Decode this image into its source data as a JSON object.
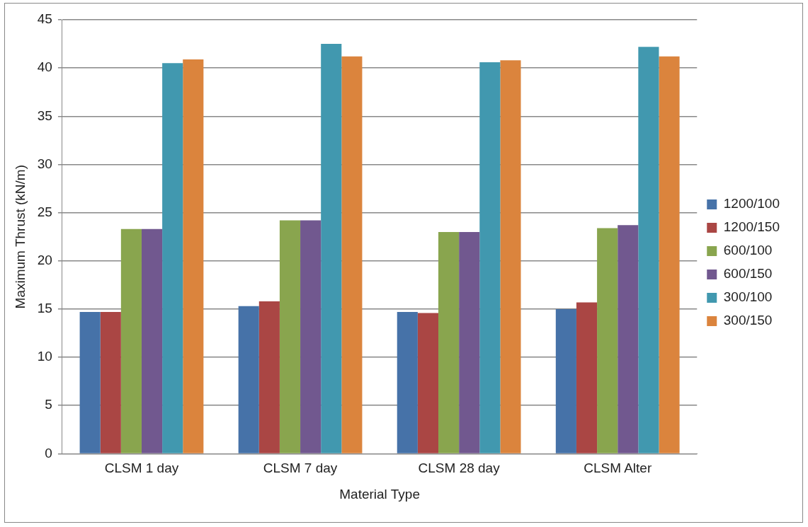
{
  "chart_data": {
    "type": "bar",
    "xlabel": "Material Type",
    "ylabel": "Maximum Thrust (kN/m)",
    "categories": [
      "CLSM 1 day",
      "CLSM 7 day",
      "CLSM 28 day",
      "CLSM Alter"
    ],
    "series": [
      {
        "name": "1200/100",
        "color": "#4672a8",
        "values": [
          14.7,
          15.3,
          14.7,
          15.0
        ]
      },
      {
        "name": "1200/150",
        "color": "#aa4644",
        "values": [
          14.7,
          15.8,
          14.6,
          15.7
        ]
      },
      {
        "name": "600/100",
        "color": "#89a54e",
        "values": [
          23.3,
          24.2,
          23.0,
          23.4
        ]
      },
      {
        "name": "600/150",
        "color": "#71588f",
        "values": [
          23.3,
          24.2,
          23.0,
          23.7
        ]
      },
      {
        "name": "300/100",
        "color": "#4198af",
        "values": [
          40.5,
          42.5,
          40.6,
          42.2
        ]
      },
      {
        "name": "300/150",
        "color": "#db843d",
        "values": [
          40.9,
          41.2,
          40.8,
          41.2
        ]
      }
    ],
    "ylim": [
      0,
      45
    ],
    "yticks": [
      0,
      5,
      10,
      15,
      20,
      25,
      30,
      35,
      40,
      45
    ],
    "grid": "y",
    "legend": "right"
  }
}
